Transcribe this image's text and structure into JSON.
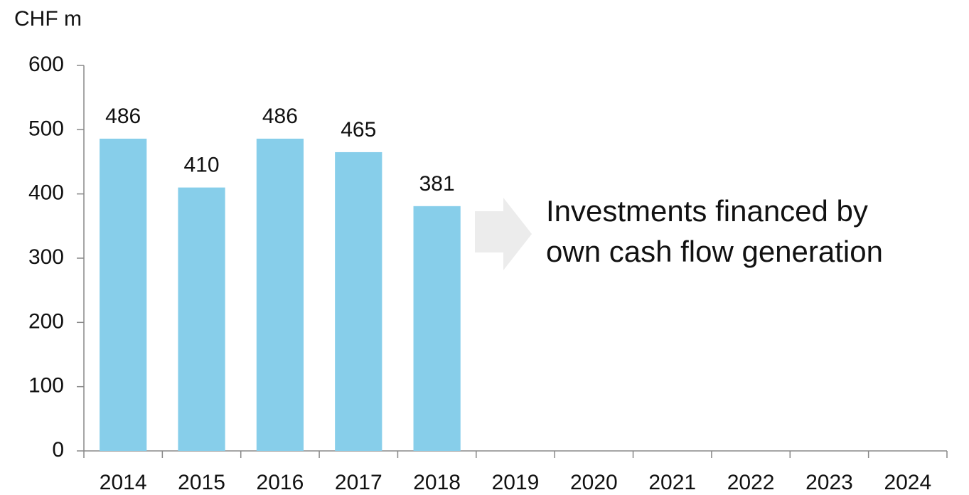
{
  "chart_data": {
    "type": "bar",
    "y_axis_label": "CHF m",
    "categories": [
      "2014",
      "2015",
      "2016",
      "2017",
      "2018",
      "2019",
      "2020",
      "2021",
      "2022",
      "2023",
      "2024"
    ],
    "values": [
      486,
      410,
      486,
      465,
      381,
      null,
      null,
      null,
      null,
      null,
      null
    ],
    "color": "#87ceea",
    "ylim": [
      0,
      600
    ],
    "yticks": [
      0,
      100,
      200,
      300,
      400,
      500,
      600
    ],
    "grid": false,
    "annotation": [
      "Investments financed by",
      "own cash flow generation"
    ]
  }
}
